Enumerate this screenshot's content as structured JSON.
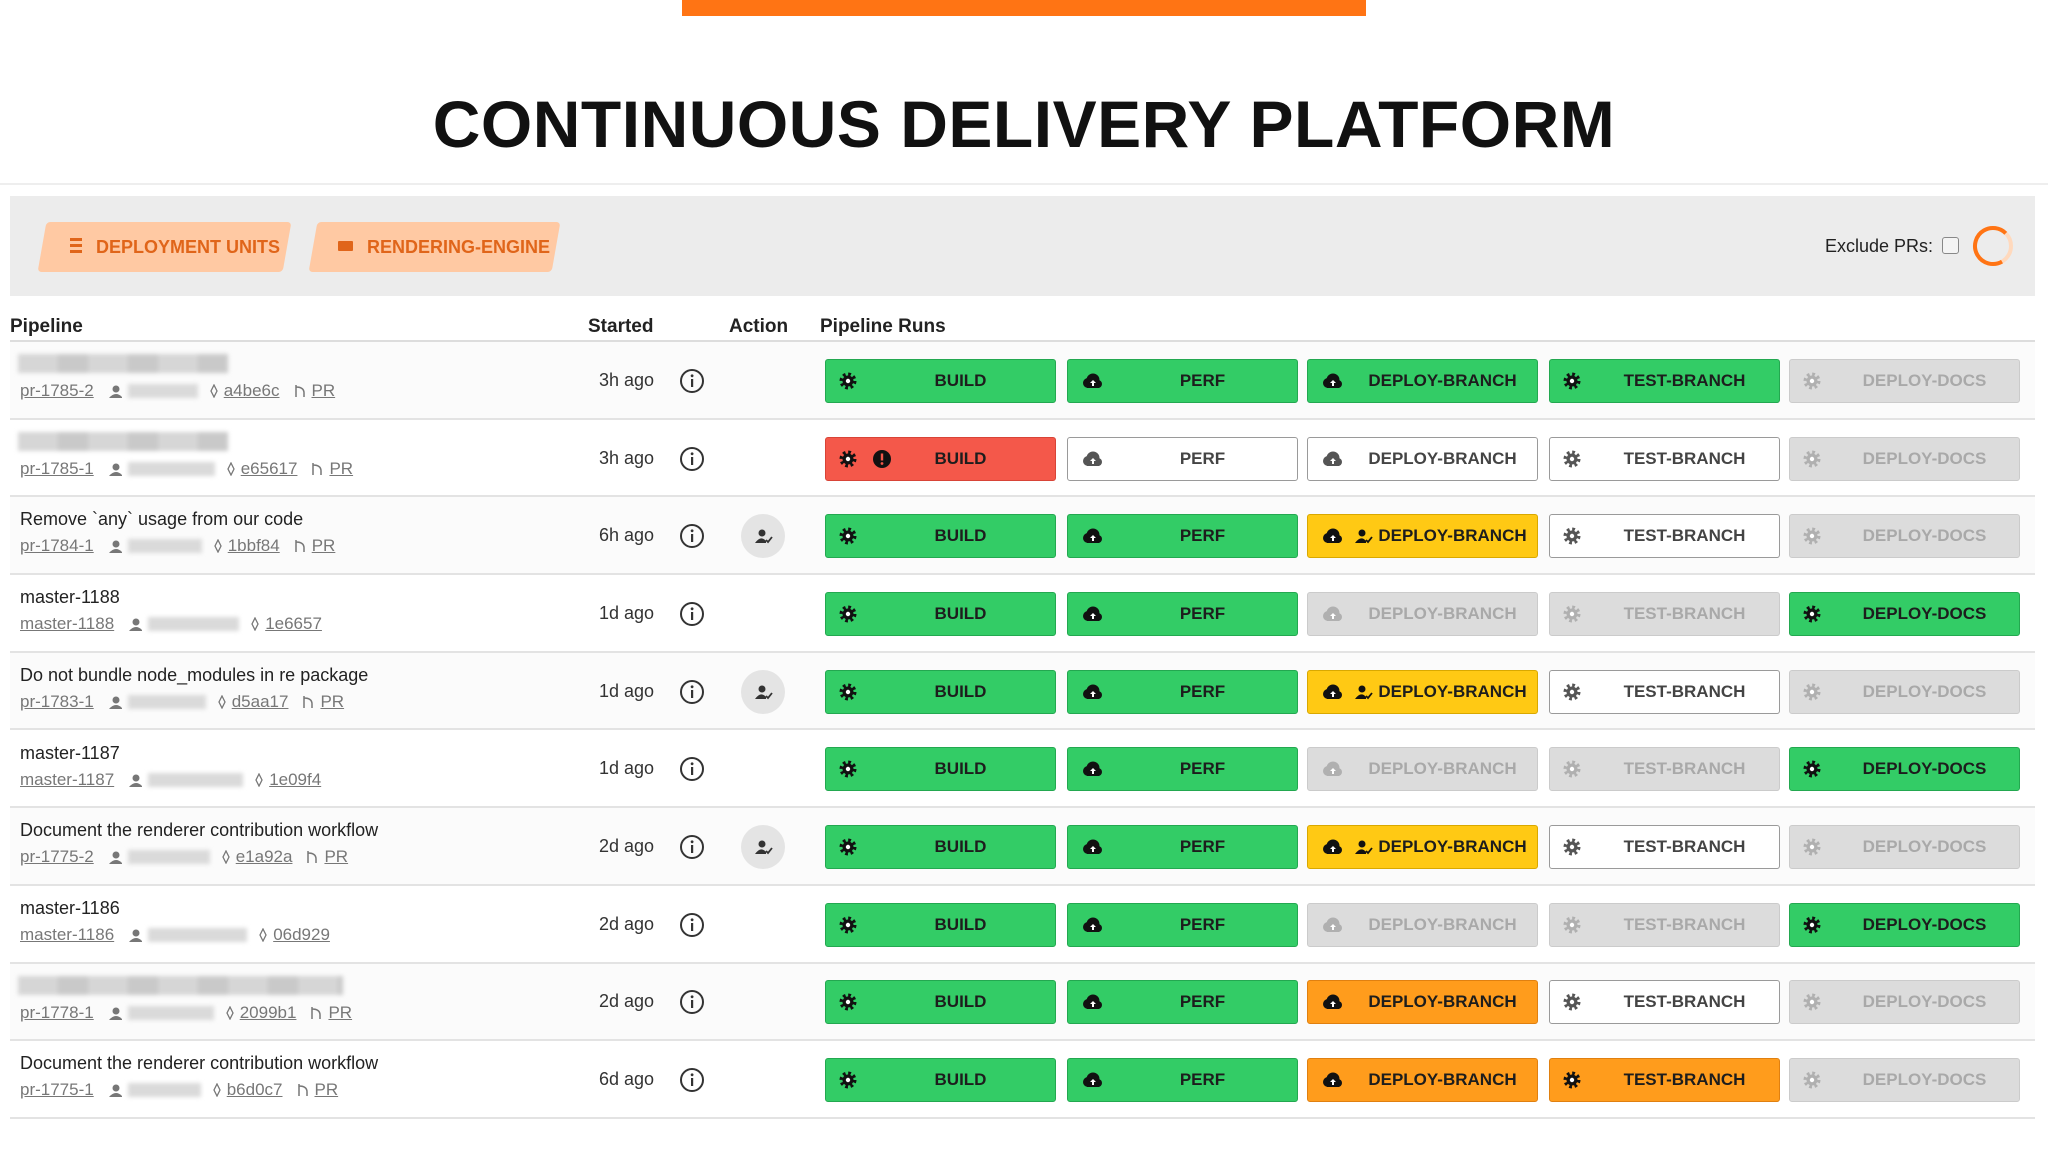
{
  "header": {
    "title": "CONTINUOUS DELIVERY PLATFORM"
  },
  "toolbar": {
    "tabs": [
      "DEPLOYMENT UNITS",
      "RENDERING-ENGINE"
    ],
    "exclude_prs_label": "Exclude PRs:"
  },
  "table": {
    "headers": [
      "Pipeline",
      "Started",
      "Action",
      "Pipeline Runs"
    ],
    "rows": [
      {
        "name": null,
        "run": "pr-1785-2",
        "commit": "a4be6c",
        "pr": "PR",
        "started": "3h ago",
        "action": false,
        "stages": [
          {
            "label": "BUILD",
            "status": "success"
          },
          {
            "label": "PERF",
            "status": "success"
          },
          {
            "label": "DEPLOY-BRANCH",
            "status": "success"
          },
          {
            "label": "TEST-BRANCH",
            "status": "success"
          },
          {
            "label": "DEPLOY-DOCS",
            "status": "disabled"
          }
        ]
      },
      {
        "name": null,
        "run": "pr-1785-1",
        "commit": "e65617",
        "pr": "PR",
        "started": "3h ago",
        "action": false,
        "stages": [
          {
            "label": "BUILD",
            "status": "failed"
          },
          {
            "label": "PERF",
            "status": "pending"
          },
          {
            "label": "DEPLOY-BRANCH",
            "status": "pending"
          },
          {
            "label": "TEST-BRANCH",
            "status": "pending"
          },
          {
            "label": "DEPLOY-DOCS",
            "status": "disabled"
          }
        ]
      },
      {
        "name": "Remove `any` usage from our code",
        "run": "pr-1784-1",
        "commit": "1bbf84",
        "pr": "PR",
        "started": "6h ago",
        "action": true,
        "stages": [
          {
            "label": "BUILD",
            "status": "success"
          },
          {
            "label": "PERF",
            "status": "success"
          },
          {
            "label": "DEPLOY-BRANCH",
            "status": "waiting"
          },
          {
            "label": "TEST-BRANCH",
            "status": "pending"
          },
          {
            "label": "DEPLOY-DOCS",
            "status": "disabled"
          }
        ]
      },
      {
        "name": "master-1188",
        "run": "master-1188",
        "commit": "1e6657",
        "started": "1d ago",
        "action": false,
        "stages": [
          {
            "label": "BUILD",
            "status": "success"
          },
          {
            "label": "PERF",
            "status": "success"
          },
          {
            "label": "DEPLOY-BRANCH",
            "status": "disabled"
          },
          {
            "label": "TEST-BRANCH",
            "status": "disabled"
          },
          {
            "label": "DEPLOY-DOCS",
            "status": "success"
          }
        ]
      },
      {
        "name": "Do not bundle node_modules in re package",
        "run": "pr-1783-1",
        "commit": "d5aa17",
        "pr": "PR",
        "started": "1d ago",
        "action": true,
        "stages": [
          {
            "label": "BUILD",
            "status": "success"
          },
          {
            "label": "PERF",
            "status": "success"
          },
          {
            "label": "DEPLOY-BRANCH",
            "status": "waiting"
          },
          {
            "label": "TEST-BRANCH",
            "status": "pending"
          },
          {
            "label": "DEPLOY-DOCS",
            "status": "disabled"
          }
        ]
      },
      {
        "name": "master-1187",
        "run": "master-1187",
        "commit": "1e09f4",
        "started": "1d ago",
        "action": false,
        "stages": [
          {
            "label": "BUILD",
            "status": "success"
          },
          {
            "label": "PERF",
            "status": "success"
          },
          {
            "label": "DEPLOY-BRANCH",
            "status": "disabled"
          },
          {
            "label": "TEST-BRANCH",
            "status": "disabled"
          },
          {
            "label": "DEPLOY-DOCS",
            "status": "success"
          }
        ]
      },
      {
        "name": "Document the renderer contribution workflow",
        "run": "pr-1775-2",
        "commit": "e1a92a",
        "pr": "PR",
        "started": "2d ago",
        "action": true,
        "stages": [
          {
            "label": "BUILD",
            "status": "success"
          },
          {
            "label": "PERF",
            "status": "success"
          },
          {
            "label": "DEPLOY-BRANCH",
            "status": "waiting"
          },
          {
            "label": "TEST-BRANCH",
            "status": "pending"
          },
          {
            "label": "DEPLOY-DOCS",
            "status": "disabled"
          }
        ]
      },
      {
        "name": "master-1186",
        "run": "master-1186",
        "commit": "06d929",
        "started": "2d ago",
        "action": false,
        "stages": [
          {
            "label": "BUILD",
            "status": "success"
          },
          {
            "label": "PERF",
            "status": "success"
          },
          {
            "label": "DEPLOY-BRANCH",
            "status": "disabled"
          },
          {
            "label": "TEST-BRANCH",
            "status": "disabled"
          },
          {
            "label": "DEPLOY-DOCS",
            "status": "success"
          }
        ]
      },
      {
        "name": null,
        "run": "pr-1778-1",
        "commit": "2099b1",
        "pr": "PR",
        "started": "2d ago",
        "action": false,
        "stages": [
          {
            "label": "BUILD",
            "status": "success"
          },
          {
            "label": "PERF",
            "status": "success"
          },
          {
            "label": "DEPLOY-BRANCH",
            "status": "running"
          },
          {
            "label": "TEST-BRANCH",
            "status": "pending"
          },
          {
            "label": "DEPLOY-DOCS",
            "status": "disabled"
          }
        ]
      },
      {
        "name": "Document the renderer contribution workflow",
        "run": "pr-1775-1",
        "commit": "b6d0c7",
        "pr": "PR",
        "started": "6d ago",
        "action": false,
        "stages": [
          {
            "label": "BUILD",
            "status": "success"
          },
          {
            "label": "PERF",
            "status": "success"
          },
          {
            "label": "DEPLOY-BRANCH",
            "status": "running"
          },
          {
            "label": "TEST-BRANCH",
            "status": "running"
          },
          {
            "label": "DEPLOY-DOCS",
            "status": "disabled"
          }
        ]
      }
    ]
  }
}
